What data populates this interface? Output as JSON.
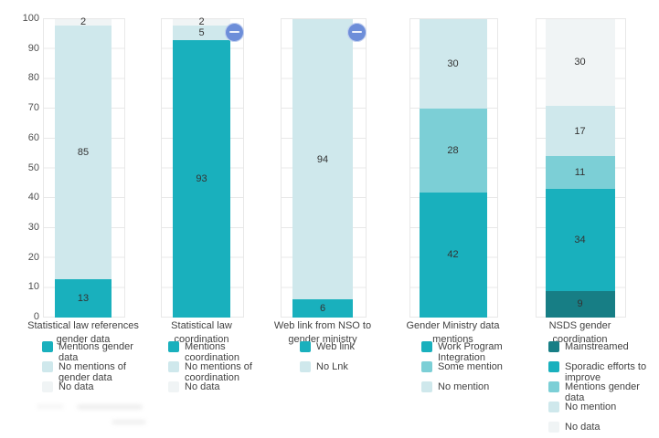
{
  "colors": {
    "teal": "#19b0bd",
    "medium_teal": "#7ccfd6",
    "light_teal": "#cfe8ec",
    "no_data_gray": "#f0f4f5",
    "dark_teal": "#177e85",
    "badge_blue": "#6d8ed9",
    "gridline": "#e8e8e8"
  },
  "y_axis": {
    "ticks": [
      100,
      90,
      80,
      70,
      60,
      50,
      40,
      30,
      20,
      10,
      0
    ]
  },
  "chart_data": {
    "type": "bar",
    "subtype": "stacked-bar-small-multiples",
    "ylim": [
      0,
      100
    ],
    "grid": "horizontal",
    "legend_position": "bottom",
    "charts": [
      {
        "title": "Statistical law references gender data",
        "minus_badge": false,
        "segments": [
          {
            "label": "Mentions gender data",
            "value": 13,
            "color": "#19b0bd"
          },
          {
            "label": "No mentions of gender data",
            "value": 85,
            "color": "#cfe8ec"
          },
          {
            "label": "No data",
            "value": 2,
            "color": "#f0f4f5"
          }
        ]
      },
      {
        "title": "Statistical law coordination",
        "minus_badge": true,
        "segments": [
          {
            "label": "Mentions coordination",
            "value": 93,
            "color": "#19b0bd"
          },
          {
            "label": "No mentions of coordination",
            "value": 5,
            "color": "#cfe8ec"
          },
          {
            "label": "No data",
            "value": 2,
            "color": "#f0f4f5"
          }
        ]
      },
      {
        "title": "Web link from NSO to gender ministry",
        "minus_badge": true,
        "segments": [
          {
            "label": "Web link",
            "value": 6,
            "color": "#19b0bd"
          },
          {
            "label": "No Lnk",
            "value": 94,
            "color": "#cfe8ec"
          }
        ]
      },
      {
        "title": "Gender Ministry data mentions",
        "minus_badge": false,
        "segments": [
          {
            "label": "Work Program Integration",
            "value": 42,
            "color": "#19b0bd"
          },
          {
            "label": "Some mention",
            "value": 28,
            "color": "#7ccfd6"
          },
          {
            "label": "No mention",
            "value": 30,
            "color": "#cfe8ec"
          }
        ]
      },
      {
        "title": "NSDS gender coordination",
        "minus_badge": false,
        "segments": [
          {
            "label": "Mainstreamed",
            "value": 9,
            "color": "#177e85"
          },
          {
            "label": "Sporadic efforts to improve",
            "value": 34,
            "color": "#19b0bd"
          },
          {
            "label": "Mentions gender data",
            "value": 11,
            "color": "#7ccfd6"
          },
          {
            "label": "No mention",
            "value": 17,
            "color": "#cfe8ec"
          },
          {
            "label": "No data",
            "value": 30,
            "color": "#f0f4f5"
          }
        ]
      }
    ]
  }
}
